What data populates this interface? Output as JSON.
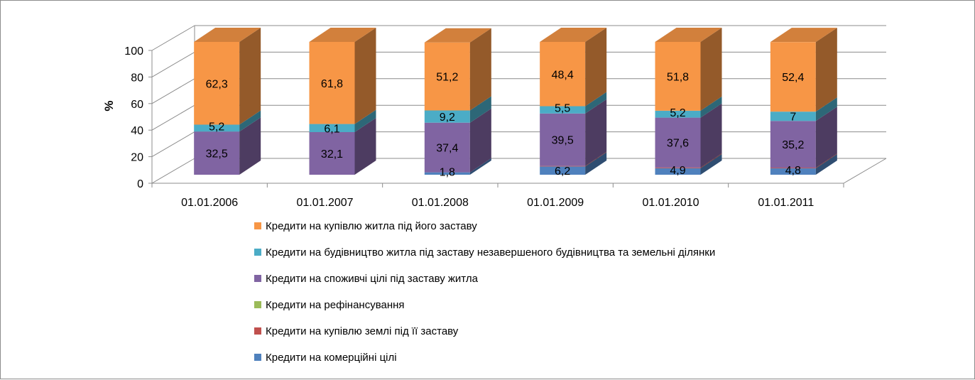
{
  "chart_data": {
    "type": "bar",
    "stacked": true,
    "three_d": true,
    "title": "",
    "xlabel": "",
    "ylabel": "%",
    "ylim": [
      0,
      100
    ],
    "yticks": [
      0,
      20,
      40,
      60,
      80,
      100
    ],
    "grid": true,
    "legend_position": "bottom",
    "categories": [
      "01.01.2006",
      "01.01.2007",
      "01.01.2008",
      "01.01.2009",
      "01.01.2010",
      "01.01.2011"
    ],
    "series": [
      {
        "name": "Кредити на комерційні цілі",
        "color": "#4f81bd",
        "values": [
          0,
          0,
          1.8,
          6.2,
          4.9,
          4.8
        ],
        "labels": [
          "",
          "",
          "1,8",
          "6,2",
          "4,9",
          "4,8"
        ]
      },
      {
        "name": "Кредити на купівлю землі під її заставу",
        "color": "#c0504d",
        "values": [
          0,
          0,
          0,
          0.4,
          0.5,
          0.5
        ],
        "labels": [
          "",
          "",
          "",
          "",
          "",
          ""
        ]
      },
      {
        "name": "Кредити на рефінансування",
        "color": "#9bbb59",
        "values": [
          0,
          0,
          0,
          0,
          0,
          0
        ],
        "labels": [
          "",
          "",
          "",
          "",
          "",
          ""
        ]
      },
      {
        "name": "Кредити на споживчі цілі під заставу житла",
        "color": "#8064a2",
        "values": [
          32.5,
          32.1,
          37.4,
          39.5,
          37.6,
          35.2
        ],
        "labels": [
          "32,5",
          "32,1",
          "37,4",
          "39,5",
          "37,6",
          "35,2"
        ]
      },
      {
        "name": "Кредити на будівництво житла під заставу незавершеного будівництва та земельні ділянки",
        "color": "#4bacc6",
        "values": [
          5.2,
          6.1,
          9.2,
          5.5,
          5.2,
          7
        ],
        "labels": [
          "5,2",
          "6,1",
          "9,2",
          "5,5",
          "5,2",
          "7"
        ]
      },
      {
        "name": "Кредити на купівлю житла під його заставу",
        "color": "#f79646",
        "values": [
          62.3,
          61.8,
          51.2,
          48.4,
          51.8,
          52.4
        ],
        "labels": [
          "62,3",
          "61,8",
          "51,2",
          "48,4",
          "51,8",
          "52,4"
        ]
      }
    ],
    "legend_order": [
      5,
      4,
      3,
      2,
      1,
      0
    ]
  }
}
